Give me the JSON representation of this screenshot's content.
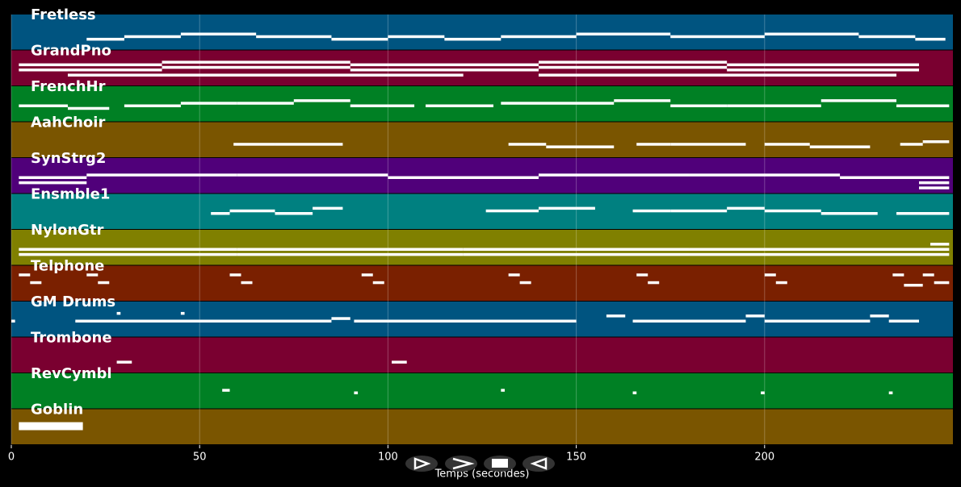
{
  "chart_data": {
    "type": "piano-roll",
    "xlabel": "Temps (secondes)",
    "xlim": [
      0,
      250
    ],
    "xticks": [
      0,
      50,
      100,
      150,
      200
    ],
    "grid": true,
    "tracks": [
      {
        "name": "Fretless",
        "color": "#005480",
        "notes": [
          [
            20,
            30,
            3
          ],
          [
            30,
            45,
            4
          ],
          [
            45,
            65,
            5
          ],
          [
            65,
            85,
            4
          ],
          [
            85,
            100,
            3
          ],
          [
            100,
            115,
            4
          ],
          [
            115,
            130,
            3
          ],
          [
            130,
            150,
            4
          ],
          [
            150,
            175,
            5
          ],
          [
            175,
            200,
            4
          ],
          [
            200,
            225,
            5
          ],
          [
            225,
            240,
            4
          ],
          [
            240,
            248,
            3
          ]
        ]
      },
      {
        "name": "GrandPno",
        "color": "#7a0030",
        "notes": [
          [
            2,
            40,
            5
          ],
          [
            2,
            40,
            7
          ],
          [
            40,
            90,
            6
          ],
          [
            40,
            90,
            8
          ],
          [
            90,
            140,
            5
          ],
          [
            90,
            140,
            7
          ],
          [
            140,
            190,
            6
          ],
          [
            140,
            190,
            8
          ],
          [
            190,
            241,
            5
          ],
          [
            190,
            241,
            7
          ],
          [
            15,
            120,
            3
          ],
          [
            140,
            235,
            3
          ]
        ]
      },
      {
        "name": "FrenchHr",
        "color": "#008024",
        "notes": [
          [
            2,
            15,
            5
          ],
          [
            15,
            26,
            4
          ],
          [
            30,
            45,
            5
          ],
          [
            45,
            60,
            6
          ],
          [
            60,
            75,
            6
          ],
          [
            75,
            90,
            7
          ],
          [
            90,
            107,
            5
          ],
          [
            110,
            128,
            5
          ],
          [
            130,
            160,
            6
          ],
          [
            160,
            175,
            7
          ],
          [
            175,
            190,
            5
          ],
          [
            190,
            215,
            5
          ],
          [
            215,
            235,
            7
          ],
          [
            235,
            249,
            5
          ]
        ]
      },
      {
        "name": "AahChoir",
        "color": "#7a5500",
        "notes": [
          [
            59,
            70,
            4
          ],
          [
            70,
            88,
            4
          ],
          [
            132,
            142,
            4
          ],
          [
            142,
            160,
            3
          ],
          [
            166,
            175,
            4
          ],
          [
            175,
            195,
            4
          ],
          [
            200,
            212,
            4
          ],
          [
            212,
            228,
            3
          ],
          [
            236,
            242,
            4
          ],
          [
            242,
            249,
            5
          ]
        ]
      },
      {
        "name": "SynStrg2",
        "color": "#50007a",
        "notes": [
          [
            2,
            20,
            5
          ],
          [
            2,
            20,
            3
          ],
          [
            20,
            60,
            6
          ],
          [
            60,
            100,
            6
          ],
          [
            100,
            140,
            5
          ],
          [
            140,
            180,
            6
          ],
          [
            180,
            220,
            6
          ],
          [
            220,
            249,
            5
          ],
          [
            241,
            249,
            3
          ],
          [
            241,
            249,
            1
          ]
        ]
      },
      {
        "name": "Ensmble1",
        "color": "#008080",
        "notes": [
          [
            53,
            58,
            5
          ],
          [
            58,
            70,
            6
          ],
          [
            70,
            80,
            5
          ],
          [
            80,
            88,
            7
          ],
          [
            126,
            140,
            6
          ],
          [
            140,
            155,
            7
          ],
          [
            165,
            175,
            6
          ],
          [
            175,
            190,
            6
          ],
          [
            190,
            200,
            7
          ],
          [
            200,
            215,
            6
          ],
          [
            215,
            230,
            5
          ],
          [
            235,
            249,
            5
          ]
        ]
      },
      {
        "name": "NylonGtr",
        "color": "#808000",
        "notes": [
          [
            2,
            60,
            5
          ],
          [
            2,
            60,
            3
          ],
          [
            60,
            120,
            5
          ],
          [
            60,
            120,
            3
          ],
          [
            120,
            180,
            5
          ],
          [
            120,
            180,
            3
          ],
          [
            180,
            249,
            5
          ],
          [
            180,
            249,
            3
          ],
          [
            244,
            249,
            7
          ]
        ]
      },
      {
        "name": "Telphone",
        "color": "#7a2000",
        "notes": [
          [
            2,
            5,
            9
          ],
          [
            5,
            8,
            6
          ],
          [
            20,
            23,
            9
          ],
          [
            23,
            26,
            6
          ],
          [
            58,
            61,
            9
          ],
          [
            61,
            64,
            6
          ],
          [
            93,
            96,
            9
          ],
          [
            96,
            99,
            6
          ],
          [
            132,
            135,
            9
          ],
          [
            135,
            138,
            6
          ],
          [
            166,
            169,
            9
          ],
          [
            169,
            172,
            6
          ],
          [
            200,
            203,
            9
          ],
          [
            203,
            206,
            6
          ],
          [
            234,
            237,
            9
          ],
          [
            237,
            242,
            5
          ],
          [
            242,
            245,
            9
          ],
          [
            245,
            249,
            6
          ]
        ]
      },
      {
        "name": "GM Drums",
        "color": "#005480",
        "notes": [
          [
            0,
            1,
            5
          ],
          [
            17,
            85,
            5
          ],
          [
            85,
            90,
            6
          ],
          [
            91,
            150,
            5
          ],
          [
            158,
            163,
            7
          ],
          [
            165,
            195,
            5
          ],
          [
            195,
            200,
            7
          ],
          [
            200,
            228,
            5
          ],
          [
            228,
            233,
            7
          ],
          [
            233,
            241,
            5
          ],
          [
            28,
            29,
            8
          ],
          [
            45,
            46,
            8
          ]
        ]
      },
      {
        "name": "Trombone",
        "color": "#7a0030",
        "notes": [
          [
            28,
            32,
            3
          ],
          [
            101,
            105,
            3
          ]
        ]
      },
      {
        "name": "RevCymbl",
        "color": "#008024",
        "notes": [
          [
            56,
            58,
            6
          ],
          [
            91,
            92,
            5
          ],
          [
            130,
            131,
            6
          ],
          [
            165,
            166,
            5
          ],
          [
            199,
            200,
            5
          ],
          [
            233,
            234,
            5
          ]
        ]
      },
      {
        "name": "Goblin",
        "color": "#7a5500",
        "notes": [
          [
            2,
            19,
            7
          ],
          [
            2,
            19,
            5
          ],
          [
            2,
            19,
            6
          ]
        ]
      }
    ]
  }
}
